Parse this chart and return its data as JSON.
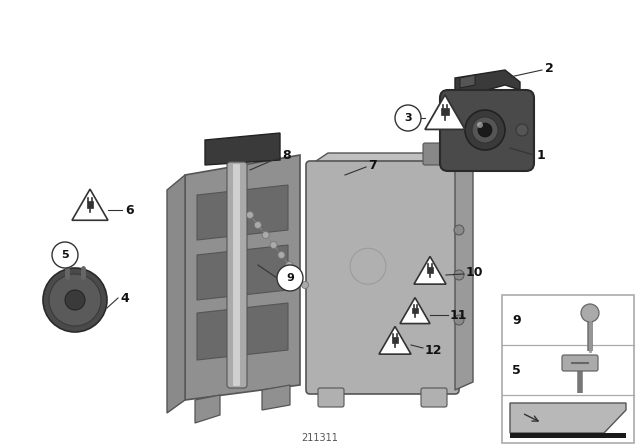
{
  "background_color": "#ffffff",
  "part_number": "211311",
  "fig_width": 6.4,
  "fig_height": 4.48,
  "dpi": 100,
  "label_color": "#111111",
  "gray_light": "#b8b8b8",
  "gray_mid": "#8a8a8a",
  "gray_dark": "#555555",
  "gray_bracket": "#909090",
  "gray_module": "#b0b0b0",
  "gray_camera": "#606060"
}
